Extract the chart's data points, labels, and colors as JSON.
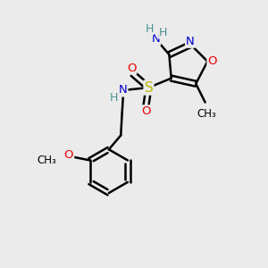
{
  "background_color": "#ebebeb",
  "atom_colors": {
    "C": "#000000",
    "N": "#0000cc",
    "O": "#ee0000",
    "S": "#bbbb00",
    "H": "#4a9090",
    "default": "#000000"
  },
  "bond_color": "#000000",
  "bond_width": 1.8,
  "fig_size": [
    3.0,
    3.0
  ],
  "dpi": 100
}
